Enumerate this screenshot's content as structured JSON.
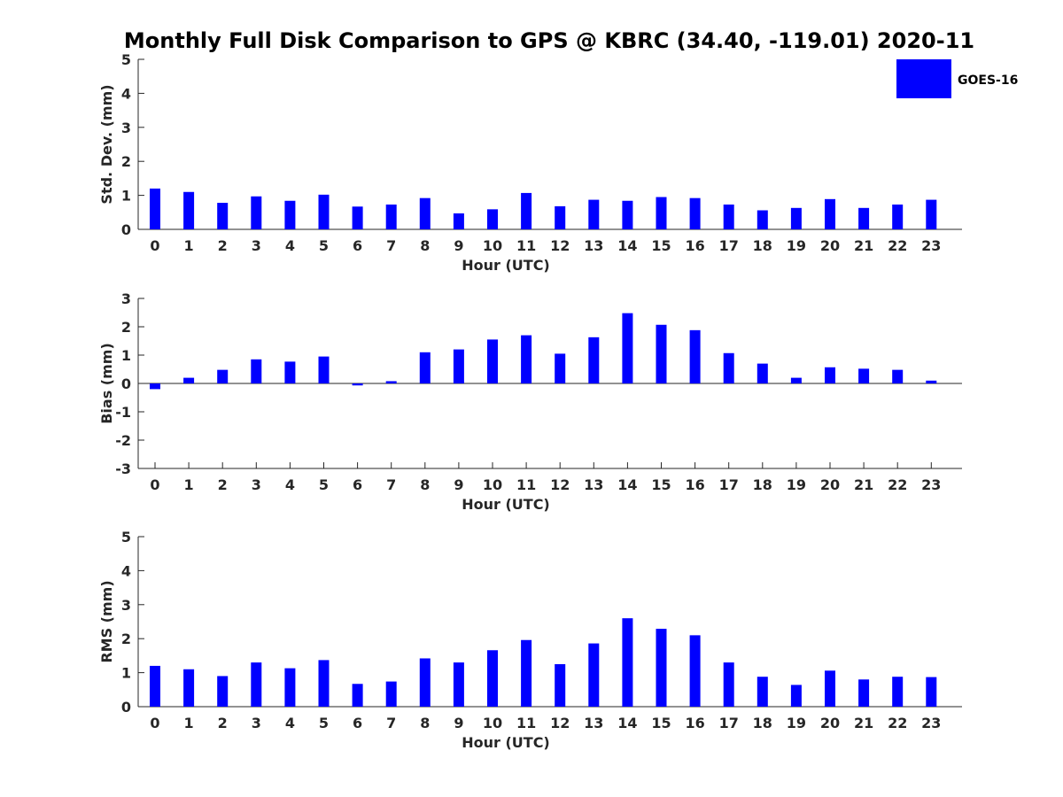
{
  "title": "Monthly Full Disk Comparison to GPS @ KBRC (34.40, -119.01) 2020-11",
  "legend": {
    "label": "GOES-16",
    "color": "#0000ff",
    "placement": "top-right"
  },
  "chart_data": [
    {
      "type": "bar",
      "xlabel": "Hour (UTC)",
      "ylabel": "Std. Dev. (mm)",
      "ylim": [
        0,
        5
      ],
      "yticks": [
        0,
        1,
        2,
        3,
        4,
        5
      ],
      "categories": [
        "0",
        "1",
        "2",
        "3",
        "4",
        "5",
        "6",
        "7",
        "8",
        "9",
        "10",
        "11",
        "12",
        "13",
        "14",
        "15",
        "16",
        "17",
        "18",
        "19",
        "20",
        "21",
        "22",
        "23"
      ],
      "series": [
        {
          "name": "GOES-16",
          "values": [
            1.2,
            1.1,
            0.78,
            0.97,
            0.84,
            1.02,
            0.67,
            0.73,
            0.92,
            0.47,
            0.59,
            1.07,
            0.68,
            0.87,
            0.84,
            0.95,
            0.92,
            0.73,
            0.56,
            0.63,
            0.89,
            0.63,
            0.73,
            0.87
          ]
        }
      ],
      "grid": false
    },
    {
      "type": "bar",
      "xlabel": "Hour (UTC)",
      "ylabel": "Bias (mm)",
      "ylim": [
        -3,
        3
      ],
      "yticks": [
        -3,
        -2,
        -1,
        0,
        1,
        2,
        3
      ],
      "zero_line": true,
      "categories": [
        "0",
        "1",
        "2",
        "3",
        "4",
        "5",
        "6",
        "7",
        "8",
        "9",
        "10",
        "11",
        "12",
        "13",
        "14",
        "15",
        "16",
        "17",
        "18",
        "19",
        "20",
        "21",
        "22",
        "23"
      ],
      "series": [
        {
          "name": "GOES-16",
          "values": [
            -0.2,
            0.2,
            0.48,
            0.85,
            0.77,
            0.95,
            -0.07,
            0.08,
            1.1,
            1.2,
            1.55,
            1.7,
            1.05,
            1.63,
            2.48,
            2.07,
            1.88,
            1.07,
            0.7,
            0.2,
            0.57,
            0.52,
            0.48,
            0.1
          ]
        }
      ],
      "grid": false
    },
    {
      "type": "bar",
      "xlabel": "Hour (UTC)",
      "ylabel": "RMS (mm)",
      "ylim": [
        0,
        5
      ],
      "yticks": [
        0,
        1,
        2,
        3,
        4,
        5
      ],
      "categories": [
        "0",
        "1",
        "2",
        "3",
        "4",
        "5",
        "6",
        "7",
        "8",
        "9",
        "10",
        "11",
        "12",
        "13",
        "14",
        "15",
        "16",
        "17",
        "18",
        "19",
        "20",
        "21",
        "22",
        "23"
      ],
      "series": [
        {
          "name": "GOES-16",
          "values": [
            1.2,
            1.1,
            0.9,
            1.3,
            1.13,
            1.37,
            0.67,
            0.74,
            1.42,
            1.3,
            1.66,
            1.96,
            1.25,
            1.86,
            2.6,
            2.29,
            2.1,
            1.3,
            0.88,
            0.64,
            1.06,
            0.8,
            0.88,
            0.87
          ]
        }
      ],
      "grid": false
    }
  ]
}
